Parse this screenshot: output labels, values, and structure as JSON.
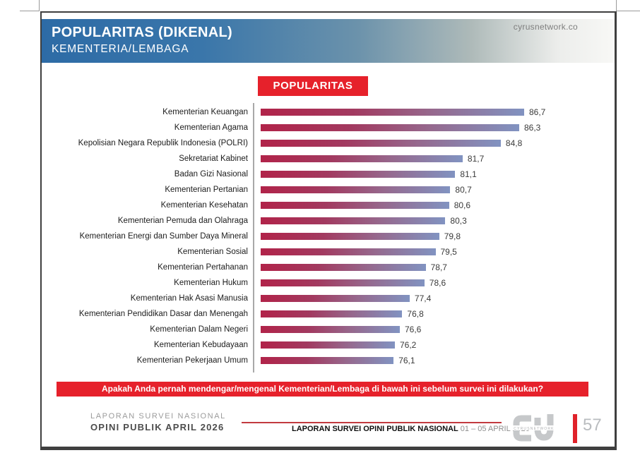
{
  "header": {
    "title": "POPULARITAS (DIKENAL)",
    "subtitle": "KEMENTERIA/LEMBAGA",
    "watermark": "cyrusnetwork.co"
  },
  "chart_data": {
    "type": "bar",
    "orientation": "horizontal",
    "title": "POPULARITAS",
    "categories": [
      "Kementerian Keuangan",
      "Kementerian Agama",
      "Kepolisian Negara Republik Indonesia (POLRI)",
      "Sekretariat Kabinet",
      "Badan Gizi Nasional",
      "Kementerian Pertanian",
      "Kementerian Kesehatan",
      "Kementerian Pemuda dan Olahraga",
      "Kementerian Energi dan Sumber Daya Mineral",
      "Kementerian Sosial",
      "Kementerian Pertahanan",
      "Kementerian Hukum",
      "Kementerian Hak Asasi Manusia",
      "Kementerian Pendidikan Dasar dan Menengah",
      "Kementerian Dalam Negeri",
      "Kementerian Kebudayaan",
      "Kementerian Pekerjaan Umum"
    ],
    "values": [
      86.7,
      86.3,
      84.8,
      81.7,
      81.1,
      80.7,
      80.6,
      80.3,
      79.8,
      79.5,
      78.7,
      78.6,
      77.4,
      76.8,
      76.6,
      76.2,
      76.1
    ],
    "value_labels": [
      "86,7",
      "86,3",
      "84,8",
      "81,7",
      "81,1",
      "80,7",
      "80,6",
      "80,3",
      "79,8",
      "79,5",
      "78,7",
      "78,6",
      "77,4",
      "76,8",
      "76,6",
      "76,2",
      "76,1"
    ],
    "xlim": [
      65.3,
      87.0
    ],
    "grid": false,
    "value_label_position": "end",
    "bar_gradient": [
      "#b12349",
      "#8193c1"
    ]
  },
  "question_banner": "Apakah Anda pernah mendengar/mengenal Kementerian/Lembaga di bawah ini sebelum survei ini dilakukan?",
  "footer": {
    "left_line1": "LAPORAN SURVEI NASIONAL",
    "left_line2": "OPINI PUBLIK APRIL 2026",
    "center_bold": "LAPORAN SURVEI OPINI PUBLIK NASIONAL",
    "center_date": "01 – 05 APRIL 2026",
    "logo_text": "CYRUSNETWORK",
    "page_number": "57"
  },
  "colors": {
    "accent_red": "#e6212b",
    "header_blue": "#2d6ba6",
    "bar_start": "#b12349",
    "bar_end": "#8193c1",
    "axis_gray": "#a9a9a9"
  }
}
